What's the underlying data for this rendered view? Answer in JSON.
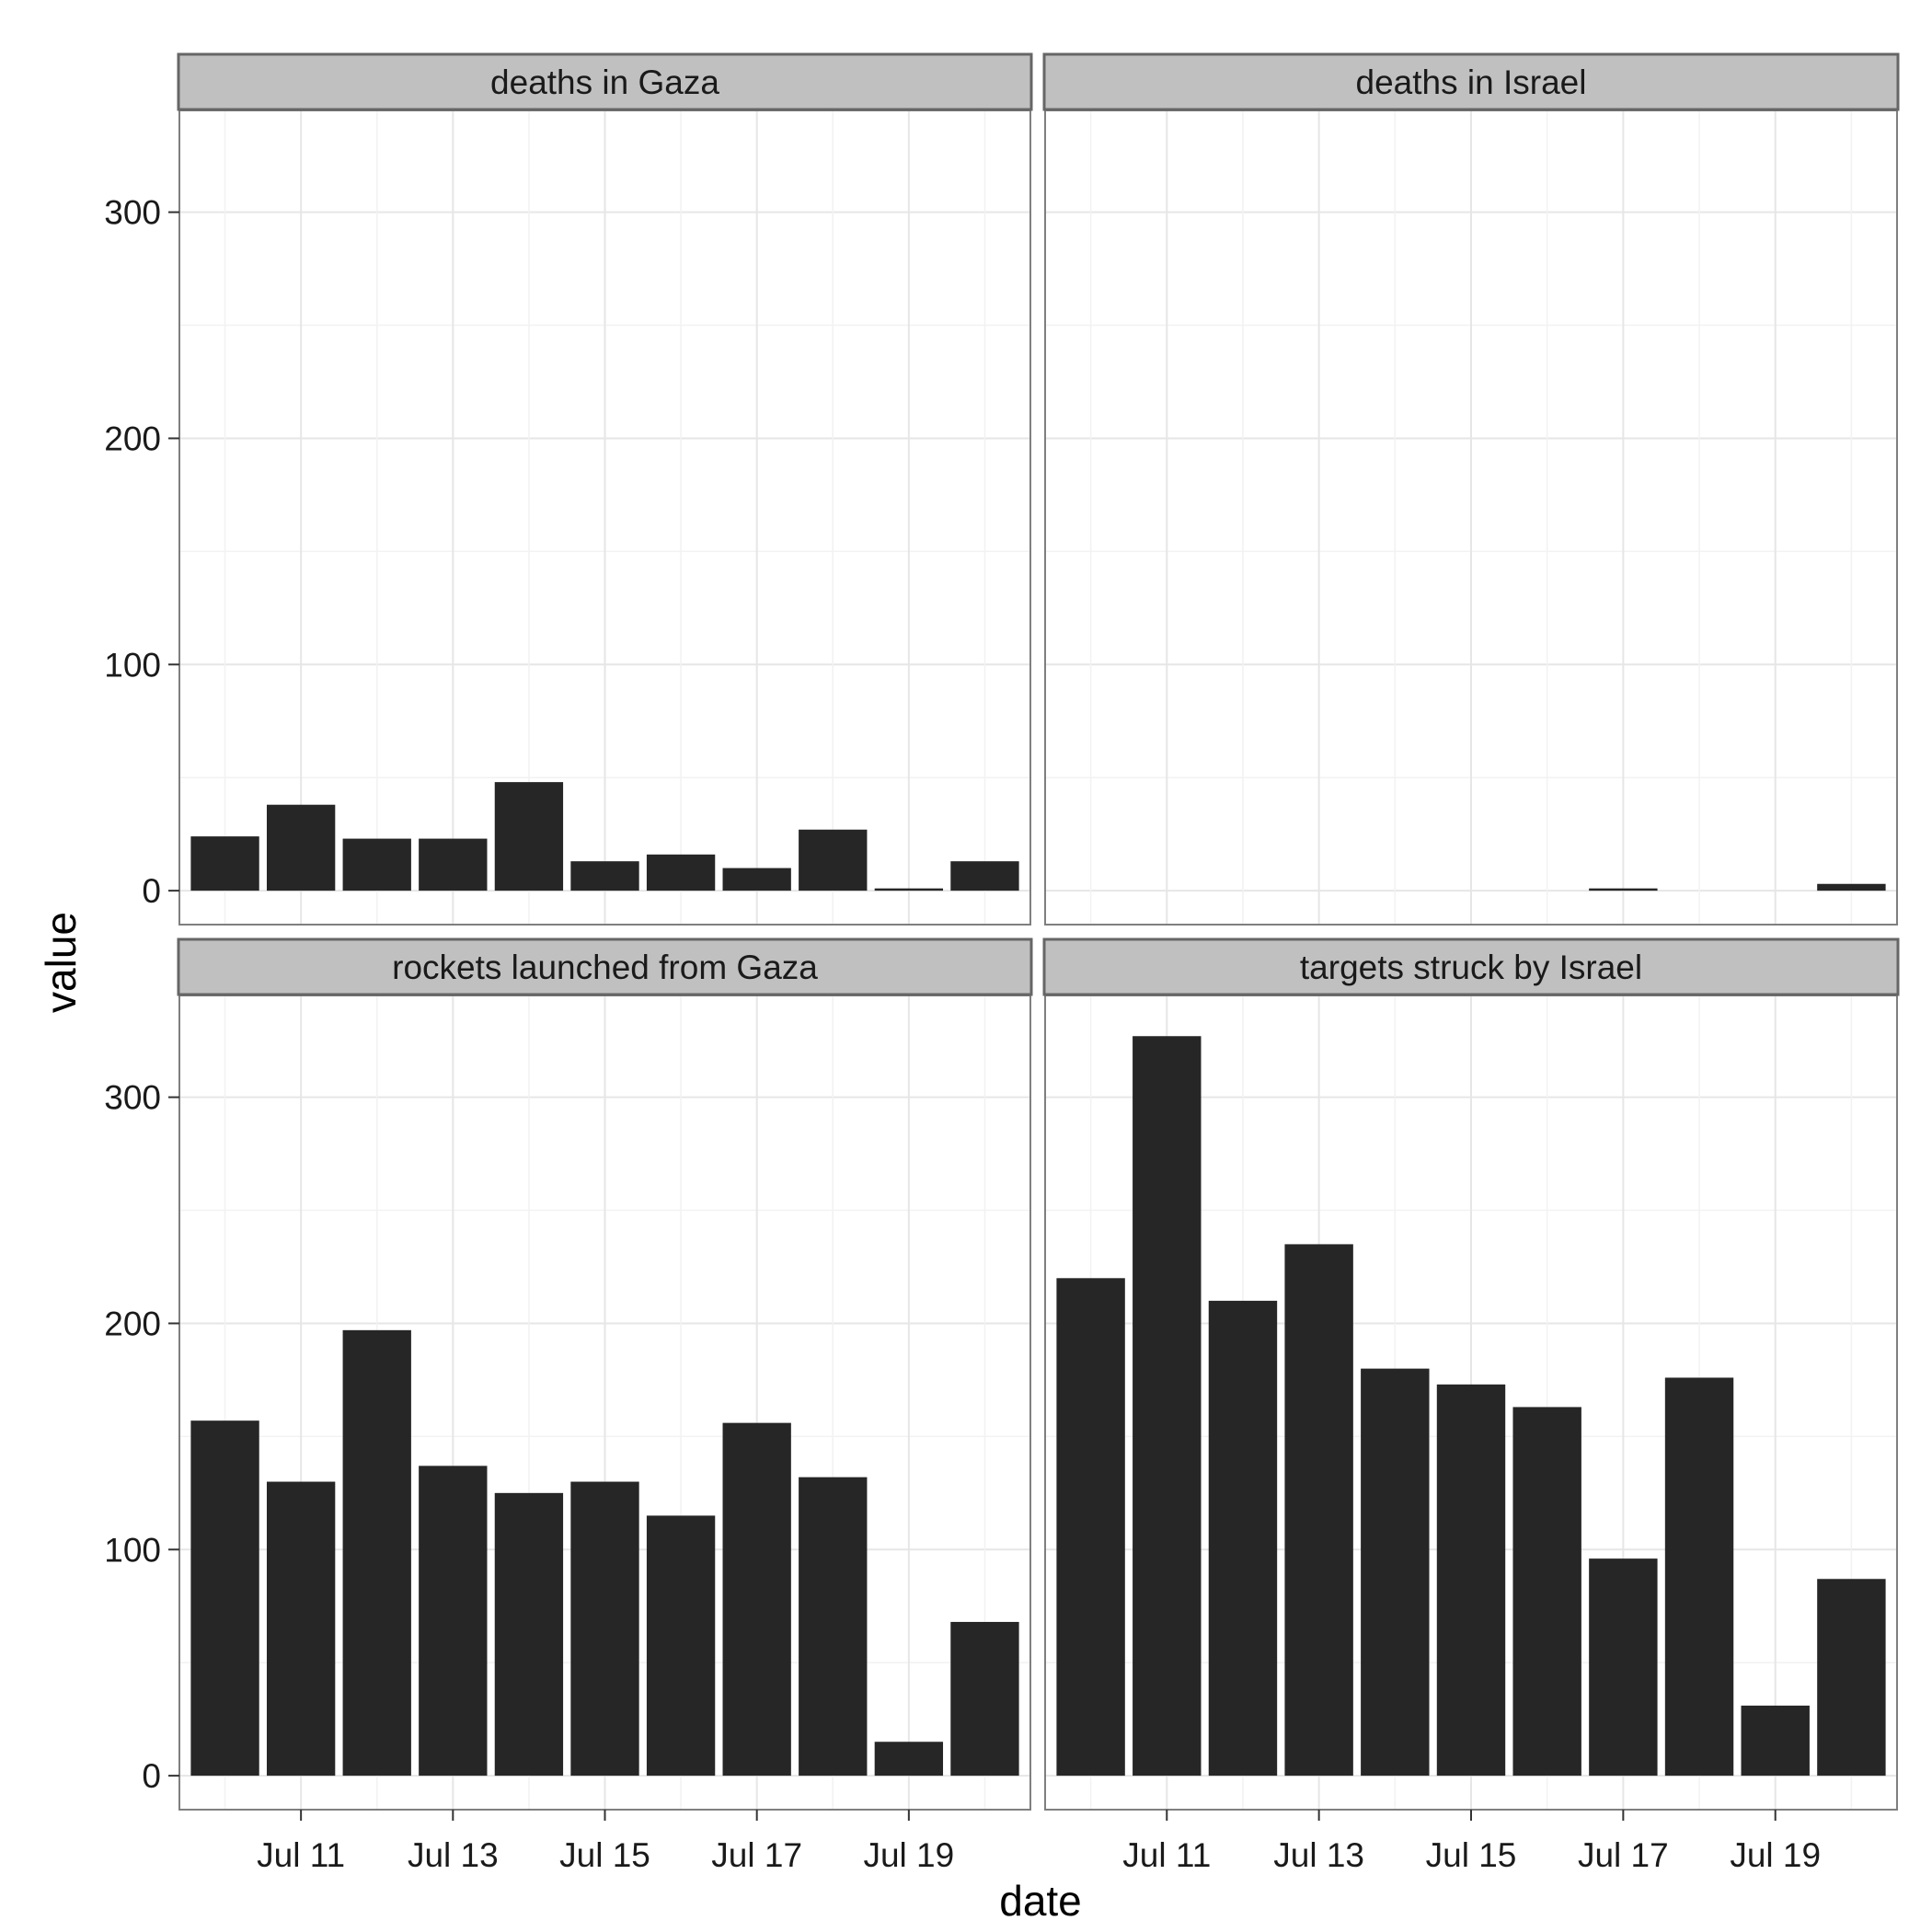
{
  "chart_data": {
    "type": "bar",
    "layout": "facet-grid 2x2, shared axes",
    "xlabel": "date",
    "ylabel": "value",
    "categories": [
      "Jul 10",
      "Jul 11",
      "Jul 12",
      "Jul 13",
      "Jul 14",
      "Jul 15",
      "Jul 16",
      "Jul 17",
      "Jul 18",
      "Jul 19",
      "Jul 20"
    ],
    "x_ticks": [
      "Jul 11",
      "Jul 13",
      "Jul 15",
      "Jul 17",
      "Jul 19"
    ],
    "y_ticks": [
      0,
      100,
      200,
      300
    ],
    "ylim": [
      -15,
      345
    ],
    "grid": true,
    "colors": {
      "bar": "#262626",
      "strip": "#c0c0c0",
      "grid": "#e6e6e6",
      "frame": "#7f7f7f"
    },
    "facets": [
      {
        "title": "deaths in Gaza",
        "values": [
          24,
          38,
          23,
          23,
          48,
          13,
          16,
          10,
          27,
          1,
          13
        ]
      },
      {
        "title": "deaths in Israel",
        "values": [
          0,
          0,
          0,
          0,
          0,
          0,
          0,
          1,
          0,
          0,
          3
        ]
      },
      {
        "title": "rockets launched from Gaza",
        "values": [
          157,
          130,
          197,
          137,
          125,
          130,
          115,
          156,
          132,
          15,
          68
        ]
      },
      {
        "title": "targets struck by Israel",
        "values": [
          220,
          327,
          210,
          235,
          180,
          173,
          163,
          96,
          176,
          31,
          87
        ]
      }
    ]
  }
}
